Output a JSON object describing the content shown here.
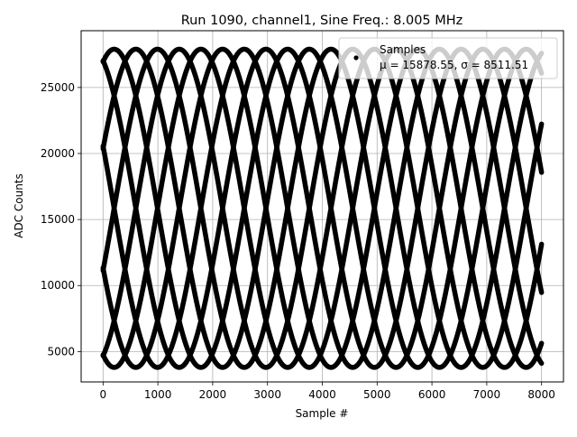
{
  "chart_data": {
    "type": "scatter",
    "title": "Run 1090, channel1, Sine Freq.: 8.005 MHz",
    "xlabel": "Sample #",
    "ylabel": "ADC Counts",
    "xlim": [
      -400,
      8400
    ],
    "ylim": [
      2700,
      29300
    ],
    "xticks": [
      0,
      1000,
      2000,
      3000,
      4000,
      5000,
      6000,
      7000,
      8000
    ],
    "yticks": [
      5000,
      10000,
      15000,
      20000,
      25000
    ],
    "grid": true,
    "legend": {
      "placement": "top-right",
      "title": "Samples",
      "label_mu": "μ = 15878.55, σ = 8511.51"
    },
    "series": [
      {
        "marker_color": "#000000",
        "model": "amp*sin(2*pi*x/period + phase) + offset",
        "amplitude": 12050,
        "offset": 15850,
        "period": 3165,
        "phases_deg": [
          22,
          67,
          112,
          157,
          202,
          247,
          292,
          337
        ],
        "x_range": [
          0,
          8000
        ]
      }
    ]
  }
}
